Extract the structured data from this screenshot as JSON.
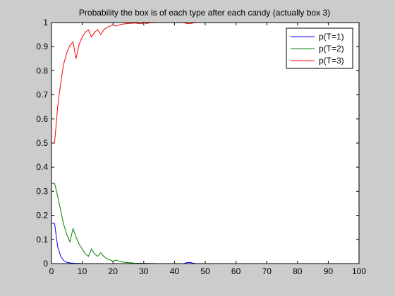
{
  "figure": {
    "background": "#cccccc"
  },
  "chart_data": {
    "type": "line",
    "title": "Probability the box is of each type after each candy (actually box 3)",
    "xlabel": "",
    "ylabel": "",
    "xlim": [
      0,
      100
    ],
    "ylim": [
      0,
      1
    ],
    "grid": false,
    "legend_position": "top-right",
    "x_ticks": [
      0,
      10,
      20,
      30,
      40,
      50,
      60,
      70,
      80,
      90,
      100
    ],
    "y_ticks": [
      0,
      0.1,
      0.2,
      0.3,
      0.4,
      0.5,
      0.6,
      0.7,
      0.8,
      0.9,
      1
    ],
    "series": [
      {
        "name": "p(T=1)",
        "color": "#0000ff",
        "points": [
          [
            0,
            0.167
          ],
          [
            1,
            0.167
          ],
          [
            2,
            0.07
          ],
          [
            3,
            0.03
          ],
          [
            4,
            0.012
          ],
          [
            5,
            0.005
          ],
          [
            6,
            0.003
          ],
          [
            7,
            0.002
          ],
          [
            8,
            0.001
          ],
          [
            9,
            0.001
          ],
          [
            10,
            0.0
          ],
          [
            12,
            0.0
          ],
          [
            15,
            0.0
          ],
          [
            20,
            0.0
          ],
          [
            25,
            0.0
          ],
          [
            28,
            0.0
          ],
          [
            29,
            0.002
          ],
          [
            30,
            0.0
          ],
          [
            32,
            0.0
          ],
          [
            35,
            0.0
          ],
          [
            40,
            0.0
          ],
          [
            43,
            0.0
          ],
          [
            44,
            0.004
          ],
          [
            45,
            0.005
          ],
          [
            46,
            0.002
          ],
          [
            47,
            0.0
          ],
          [
            50,
            0.0
          ],
          [
            100,
            0.0
          ]
        ]
      },
      {
        "name": "p(T=2)",
        "color": "#008000",
        "points": [
          [
            0,
            0.333
          ],
          [
            1,
            0.333
          ],
          [
            2,
            0.28
          ],
          [
            3,
            0.22
          ],
          [
            4,
            0.16
          ],
          [
            5,
            0.12
          ],
          [
            6,
            0.09
          ],
          [
            7,
            0.145
          ],
          [
            8,
            0.11
          ],
          [
            9,
            0.08
          ],
          [
            10,
            0.06
          ],
          [
            11,
            0.04
          ],
          [
            12,
            0.03
          ],
          [
            13,
            0.06
          ],
          [
            14,
            0.04
          ],
          [
            15,
            0.03
          ],
          [
            16,
            0.045
          ],
          [
            17,
            0.03
          ],
          [
            18,
            0.02
          ],
          [
            19,
            0.015
          ],
          [
            20,
            0.01
          ],
          [
            21,
            0.015
          ],
          [
            22,
            0.01
          ],
          [
            23,
            0.007
          ],
          [
            24,
            0.005
          ],
          [
            25,
            0.004
          ],
          [
            27,
            0.002
          ],
          [
            30,
            0.001
          ],
          [
            35,
            0.0
          ],
          [
            50,
            0.0
          ],
          [
            100,
            0.0
          ]
        ]
      },
      {
        "name": "p(T=3)",
        "color": "#ff0000",
        "points": [
          [
            0,
            0.5
          ],
          [
            1,
            0.5
          ],
          [
            2,
            0.65
          ],
          [
            3,
            0.75
          ],
          [
            4,
            0.83
          ],
          [
            5,
            0.875
          ],
          [
            6,
            0.905
          ],
          [
            7,
            0.92
          ],
          [
            8,
            0.85
          ],
          [
            9,
            0.91
          ],
          [
            10,
            0.94
          ],
          [
            11,
            0.96
          ],
          [
            12,
            0.97
          ],
          [
            13,
            0.94
          ],
          [
            14,
            0.96
          ],
          [
            15,
            0.97
          ],
          [
            16,
            0.95
          ],
          [
            17,
            0.97
          ],
          [
            18,
            0.98
          ],
          [
            19,
            0.985
          ],
          [
            20,
            0.99
          ],
          [
            21,
            0.985
          ],
          [
            22,
            0.99
          ],
          [
            23,
            0.993
          ],
          [
            24,
            0.995
          ],
          [
            25,
            0.996
          ],
          [
            27,
            0.998
          ],
          [
            29,
            0.995
          ],
          [
            30,
            0.999
          ],
          [
            31,
            0.996
          ],
          [
            32,
            0.999
          ],
          [
            35,
            1.0
          ],
          [
            40,
            1.0
          ],
          [
            43,
            1.0
          ],
          [
            44,
            0.996
          ],
          [
            45,
            0.995
          ],
          [
            46,
            0.998
          ],
          [
            47,
            1.0
          ],
          [
            50,
            1.0
          ]
        ]
      }
    ]
  }
}
